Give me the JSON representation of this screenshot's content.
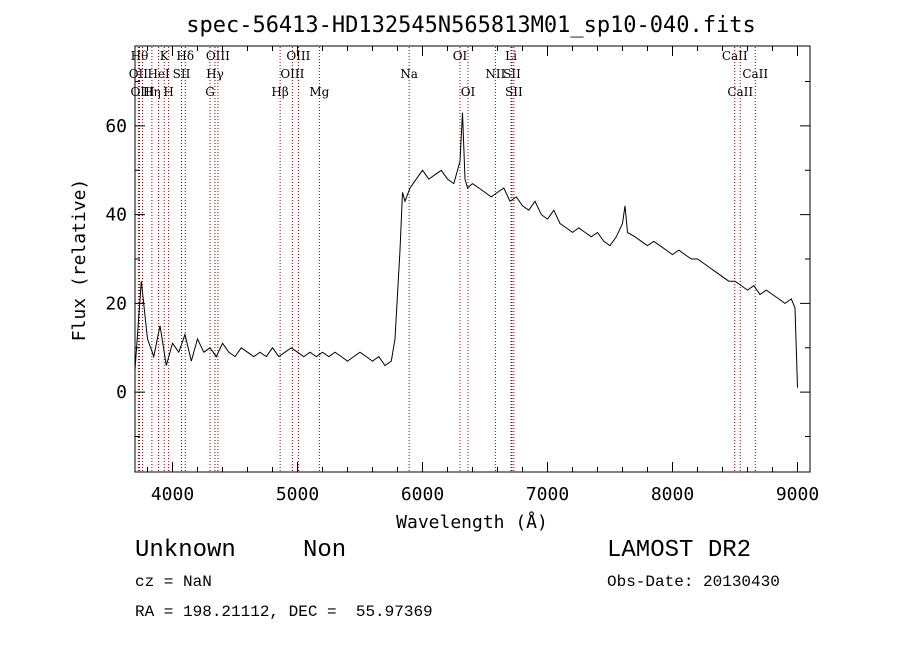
{
  "chart_data": {
    "type": "line",
    "title": "spec-56413-HD132545N565813M01_sp10-040.fits",
    "xlabel": "Wavelength (Å)",
    "ylabel": "Flux (relative)",
    "xlim": [
      3700,
      9100
    ],
    "ylim": [
      -18,
      78
    ],
    "xticks": [
      4000,
      5000,
      6000,
      7000,
      8000,
      9000
    ],
    "yticks": [
      0,
      20,
      40,
      60
    ],
    "grid": false,
    "line_color": "#000000",
    "marker_color": "#8b0000",
    "series": [
      {
        "x": [
          3700,
          3750,
          3800,
          3850,
          3900,
          3950,
          4000,
          4050,
          4100,
          4150,
          4200,
          4250,
          4300,
          4350,
          4400,
          4450,
          4500,
          4550,
          4600,
          4650,
          4700,
          4750,
          4800,
          4850,
          4900,
          4950,
          5000,
          5050,
          5100,
          5150,
          5200,
          5250,
          5300,
          5350,
          5400,
          5450,
          5500,
          5550,
          5600,
          5650,
          5700,
          5750,
          5780,
          5800,
          5820,
          5840,
          5860,
          5900,
          5950,
          6000,
          6050,
          6100,
          6150,
          6200,
          6250,
          6300,
          6320,
          6340,
          6360,
          6400,
          6450,
          6500,
          6550,
          6600,
          6650,
          6700,
          6750,
          6800,
          6850,
          6900,
          6950,
          7000,
          7050,
          7100,
          7150,
          7200,
          7250,
          7300,
          7350,
          7400,
          7450,
          7500,
          7550,
          7600,
          7620,
          7640,
          7700,
          7750,
          7800,
          7850,
          7900,
          7950,
          8000,
          8050,
          8100,
          8150,
          8200,
          8250,
          8300,
          8350,
          8400,
          8450,
          8500,
          8550,
          8600,
          8650,
          8700,
          8750,
          8800,
          8850,
          8900,
          8950,
          8980,
          9000
        ],
        "y": [
          5,
          25,
          12,
          8,
          15,
          6,
          11,
          9,
          13,
          7,
          12,
          9,
          10,
          8,
          11,
          9,
          8,
          10,
          9,
          8,
          9,
          8,
          10,
          8,
          9,
          10,
          9,
          8,
          9,
          8,
          9,
          8,
          9,
          8,
          7,
          8,
          9,
          8,
          7,
          8,
          6,
          7,
          12,
          22,
          32,
          45,
          43,
          46,
          48,
          50,
          48,
          49,
          50,
          48,
          47,
          52,
          63,
          48,
          46,
          47,
          46,
          45,
          44,
          45,
          46,
          43,
          44,
          42,
          41,
          43,
          40,
          39,
          41,
          38,
          37,
          36,
          37,
          36,
          35,
          36,
          34,
          33,
          35,
          38,
          42,
          36,
          35,
          34,
          33,
          34,
          33,
          32,
          31,
          32,
          31,
          30,
          30,
          29,
          28,
          27,
          26,
          25,
          25,
          24,
          23,
          24,
          22,
          23,
          22,
          21,
          20,
          21,
          19,
          1
        ]
      }
    ],
    "line_markers": [
      {
        "x": 3736,
        "label": "Hθ",
        "row": 1
      },
      {
        "x": 3727,
        "label": "OII",
        "row": 2
      },
      {
        "x": 3760,
        "label": "OIII",
        "row": 3
      },
      {
        "x": 3835,
        "label": "Hη",
        "row": 3
      },
      {
        "x": 3889,
        "label": "HeI",
        "row": 2
      },
      {
        "x": 3934,
        "label": "K",
        "row": 1
      },
      {
        "x": 3969,
        "label": "H",
        "row": 3
      },
      {
        "x": 4072,
        "label": "SII",
        "row": 2
      },
      {
        "x": 4102,
        "label": "Hδ",
        "row": 1
      },
      {
        "x": 4300,
        "label": "G",
        "row": 3
      },
      {
        "x": 4340,
        "label": "Hγ",
        "row": 2
      },
      {
        "x": 4363,
        "label": "OIII",
        "row": 1
      },
      {
        "x": 4861,
        "label": "Hβ",
        "row": 3
      },
      {
        "x": 4959,
        "label": "OIII",
        "row": 2
      },
      {
        "x": 5007,
        "label": "OIII",
        "row": 1
      },
      {
        "x": 5175,
        "label": "Mg",
        "row": 3
      },
      {
        "x": 5893,
        "label": "Na",
        "row": 2
      },
      {
        "x": 6300,
        "label": "OI",
        "row": 1
      },
      {
        "x": 6364,
        "label": "OI",
        "row": 3
      },
      {
        "x": 6583,
        "label": "NII",
        "row": 2
      },
      {
        "x": 6708,
        "label": "Li",
        "row": 1
      },
      {
        "x": 6716,
        "label": "SII",
        "row": 2
      },
      {
        "x": 6731,
        "label": "SII",
        "row": 3
      },
      {
        "x": 8498,
        "label": "CaII",
        "row": 1
      },
      {
        "x": 8542,
        "label": "CaII",
        "row": 3
      },
      {
        "x": 8662,
        "label": "CaII",
        "row": 2
      }
    ]
  },
  "info": {
    "class_label": "Unknown",
    "subclass_label": "Non",
    "survey": "LAMOST DR2",
    "cz": "cz = NaN",
    "obs_date": "Obs-Date: 20130430",
    "coords": "RA = 198.21112, DEC =  55.97369"
  }
}
